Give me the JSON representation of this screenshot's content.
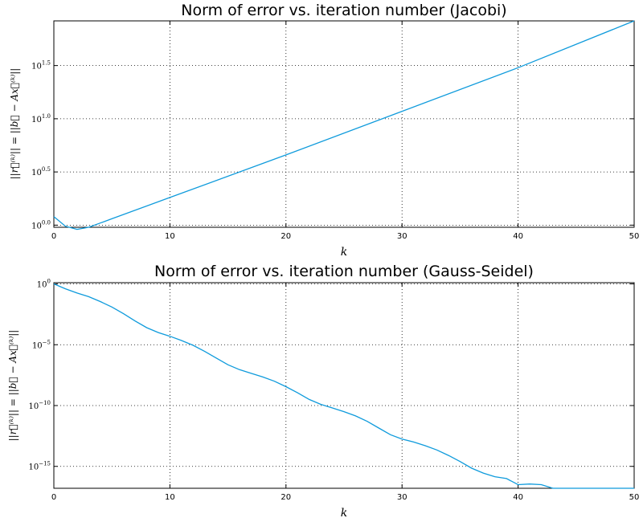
{
  "chart_data": [
    {
      "type": "line",
      "title": "Norm of error vs. iteration number (Jacobi)",
      "xlabel": "k",
      "ylabel": "||r⃗⁽ᵏ⁾|| = ||b⃗ − Ax⃗⁽ᵏ⁾||",
      "xlim": [
        0,
        50
      ],
      "yscale": "log",
      "ylim_log10": [
        -0.02,
        1.92
      ],
      "x_ticks": [
        0,
        10,
        20,
        30,
        40,
        50
      ],
      "y_ticks_log10": [
        {
          "log10": 0.0,
          "base": "10",
          "exp": "0.0"
        },
        {
          "log10": 0.5,
          "base": "10",
          "exp": "0.5"
        },
        {
          "log10": 1.0,
          "base": "10",
          "exp": "1.0"
        },
        {
          "log10": 1.5,
          "base": "10",
          "exp": "1.5"
        }
      ],
      "grid": true,
      "series": [
        {
          "color": "#0f9bdc",
          "x": [
            0,
            1,
            2,
            3,
            4,
            5,
            10,
            20,
            30,
            40,
            50
          ],
          "log10_y": [
            0.08,
            -0.01,
            -0.04,
            -0.02,
            0.02,
            0.06,
            0.26,
            0.66,
            1.07,
            1.48,
            1.92
          ]
        }
      ]
    },
    {
      "type": "line",
      "title": "Norm of error vs. iteration number (Gauss-Seidel)",
      "xlabel": "k",
      "ylabel": "||r⃗⁽ᵏ⁾|| = ||b⃗ − Ax⃗⁽ᵏ⁾||",
      "xlim": [
        0,
        50
      ],
      "yscale": "log",
      "ylim_log10": [
        -16.8,
        0.1
      ],
      "x_ticks": [
        0,
        10,
        20,
        30,
        40,
        50
      ],
      "y_ticks_log10": [
        {
          "log10": 0,
          "base": "10",
          "exp": "0"
        },
        {
          "log10": -5,
          "base": "10",
          "exp": "−5"
        },
        {
          "log10": -10,
          "base": "10",
          "exp": "−10"
        },
        {
          "log10": -15,
          "base": "10",
          "exp": "−15"
        }
      ],
      "grid": true,
      "series": [
        {
          "color": "#0f9bdc",
          "x": [
            0,
            1,
            2,
            3,
            4,
            5,
            6,
            7,
            8,
            9,
            10,
            11,
            12,
            13,
            14,
            15,
            16,
            17,
            18,
            19,
            20,
            21,
            22,
            23,
            24,
            25,
            26,
            27,
            28,
            29,
            30,
            31,
            32,
            33,
            34,
            35,
            36,
            37,
            38,
            39,
            40,
            41,
            42,
            43,
            44,
            45,
            46,
            47,
            48,
            49,
            50
          ],
          "log10_y": [
            0,
            -0.4,
            -0.75,
            -1.05,
            -1.45,
            -1.9,
            -2.45,
            -3.05,
            -3.6,
            -4.0,
            -4.3,
            -4.65,
            -5.05,
            -5.55,
            -6.1,
            -6.65,
            -7.05,
            -7.35,
            -7.65,
            -8.0,
            -8.45,
            -8.95,
            -9.5,
            -9.9,
            -10.2,
            -10.5,
            -10.85,
            -11.3,
            -11.85,
            -12.4,
            -12.75,
            -13.0,
            -13.3,
            -13.65,
            -14.1,
            -14.6,
            -15.15,
            -15.55,
            -15.85,
            -16.0,
            -16.5,
            -16.45,
            -16.5,
            -16.8,
            -16.8,
            -16.8,
            -16.8,
            -16.8,
            -16.8,
            -16.8,
            -16.8
          ]
        }
      ]
    }
  ]
}
